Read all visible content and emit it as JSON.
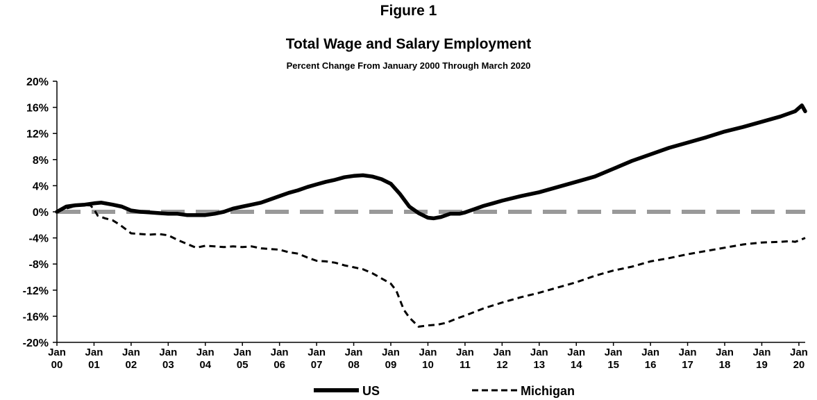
{
  "figure_label": "Figure 1",
  "chart_data": {
    "type": "line",
    "title": "Total Wage and Salary Employment",
    "subtitle": "Percent Change From January 2000 Through March 2020",
    "ylim": [
      -20,
      20
    ],
    "y_ticks": [
      20,
      16,
      12,
      8,
      4,
      0,
      -4,
      -8,
      -12,
      -16,
      -20
    ],
    "y_tick_labels": [
      "20%",
      "16%",
      "12%",
      "8%",
      "4%",
      "0%",
      "-4%",
      "-8%",
      "-12%",
      "-16%",
      "-20%"
    ],
    "x_ticks": [
      2000,
      2001,
      2002,
      2003,
      2004,
      2005,
      2006,
      2007,
      2008,
      2009,
      2010,
      2011,
      2012,
      2013,
      2014,
      2015,
      2016,
      2017,
      2018,
      2019,
      2020
    ],
    "x_tick_labels": [
      [
        "Jan",
        "00"
      ],
      [
        "Jan",
        "01"
      ],
      [
        "Jan",
        "02"
      ],
      [
        "Jan",
        "03"
      ],
      [
        "Jan",
        "04"
      ],
      [
        "Jan",
        "05"
      ],
      [
        "Jan",
        "06"
      ],
      [
        "Jan",
        "07"
      ],
      [
        "Jan",
        "08"
      ],
      [
        "Jan",
        "09"
      ],
      [
        "Jan",
        "10"
      ],
      [
        "Jan",
        "11"
      ],
      [
        "Jan",
        "12"
      ],
      [
        "Jan",
        "13"
      ],
      [
        "Jan",
        "14"
      ],
      [
        "Jan",
        "15"
      ],
      [
        "Jan",
        "16"
      ],
      [
        "Jan",
        "17"
      ],
      [
        "Jan",
        "18"
      ],
      [
        "Jan",
        "19"
      ],
      [
        "Jan",
        "20"
      ]
    ],
    "xlim": [
      2000,
      2020.17
    ],
    "grid": false,
    "reference_line": {
      "y": 0,
      "color": "#999999",
      "style": "dashed"
    },
    "legend_position": "bottom-center",
    "series": [
      {
        "name": "US",
        "style": "solid",
        "color": "#000000",
        "x": [
          2000,
          2000.25,
          2000.5,
          2000.75,
          2001,
          2001.2,
          2001.5,
          2001.75,
          2002,
          2002.25,
          2002.5,
          2002.75,
          2003,
          2003.25,
          2003.5,
          2003.75,
          2004,
          2004.25,
          2004.5,
          2004.75,
          2005,
          2005.25,
          2005.5,
          2005.75,
          2006,
          2006.25,
          2006.5,
          2006.75,
          2007,
          2007.25,
          2007.5,
          2007.75,
          2008,
          2008.25,
          2008.5,
          2008.75,
          2009,
          2009.25,
          2009.5,
          2009.75,
          2010,
          2010.15,
          2010.35,
          2010.6,
          2010.85,
          2011,
          2011.25,
          2011.5,
          2011.75,
          2012,
          2012.5,
          2013,
          2013.5,
          2014,
          2014.5,
          2015,
          2015.5,
          2016,
          2016.5,
          2017,
          2017.5,
          2018,
          2018.5,
          2019,
          2019.5,
          2019.9,
          2020,
          2020.08,
          2020.17
        ],
        "y": [
          0,
          0.8,
          1.0,
          1.1,
          1.3,
          1.4,
          1.1,
          0.8,
          0.2,
          0,
          -0.1,
          -0.2,
          -0.3,
          -0.3,
          -0.5,
          -0.5,
          -0.5,
          -0.3,
          0,
          0.5,
          0.8,
          1.1,
          1.4,
          1.9,
          2.4,
          2.9,
          3.3,
          3.8,
          4.2,
          4.6,
          4.9,
          5.3,
          5.5,
          5.6,
          5.4,
          5.0,
          4.3,
          2.7,
          0.8,
          -0.2,
          -0.9,
          -1.0,
          -0.8,
          -0.3,
          -0.3,
          -0.1,
          0.4,
          0.9,
          1.3,
          1.7,
          2.4,
          3.0,
          3.8,
          4.6,
          5.4,
          6.6,
          7.8,
          8.8,
          9.8,
          10.6,
          11.4,
          12.3,
          13.0,
          13.8,
          14.6,
          15.4,
          15.9,
          16.3,
          15.4
        ]
      },
      {
        "name": "Michigan",
        "style": "dashed",
        "color": "#000000",
        "x": [
          2000,
          2000.25,
          2000.5,
          2000.75,
          2000.9,
          2001,
          2001.1,
          2001.3,
          2001.5,
          2001.7,
          2002,
          2002.25,
          2002.5,
          2002.75,
          2003,
          2003.25,
          2003.5,
          2003.75,
          2004,
          2004.25,
          2004.5,
          2004.75,
          2005,
          2005.25,
          2005.5,
          2005.75,
          2006,
          2006.25,
          2006.5,
          2006.75,
          2007,
          2007.25,
          2007.5,
          2007.75,
          2008,
          2008.25,
          2008.5,
          2008.75,
          2009,
          2009.15,
          2009.35,
          2009.5,
          2009.75,
          2010,
          2010.25,
          2010.5,
          2010.75,
          2011,
          2011.5,
          2012,
          2012.5,
          2013,
          2013.5,
          2014,
          2014.5,
          2015,
          2015.5,
          2016,
          2016.5,
          2017,
          2017.5,
          2018,
          2018.5,
          2019,
          2019.5,
          2019.75,
          2019.9,
          2020,
          2020.17
        ],
        "y": [
          0,
          0.5,
          0.9,
          1.0,
          1.0,
          0.4,
          -0.6,
          -1.0,
          -1.3,
          -2.0,
          -3.3,
          -3.4,
          -3.5,
          -3.4,
          -3.6,
          -4.3,
          -4.9,
          -5.5,
          -5.2,
          -5.3,
          -5.4,
          -5.3,
          -5.4,
          -5.3,
          -5.6,
          -5.7,
          -5.8,
          -6.2,
          -6.4,
          -7.0,
          -7.5,
          -7.6,
          -7.8,
          -8.2,
          -8.5,
          -8.8,
          -9.4,
          -10.2,
          -11.0,
          -12.1,
          -15.0,
          -16.2,
          -17.6,
          -17.4,
          -17.3,
          -17.0,
          -16.4,
          -15.9,
          -14.8,
          -13.9,
          -13.1,
          -12.4,
          -11.6,
          -10.8,
          -9.8,
          -9.0,
          -8.4,
          -7.6,
          -7.1,
          -6.5,
          -6.0,
          -5.5,
          -5.0,
          -4.7,
          -4.6,
          -4.5,
          -4.6,
          -4.4,
          -4.0
        ]
      }
    ]
  }
}
